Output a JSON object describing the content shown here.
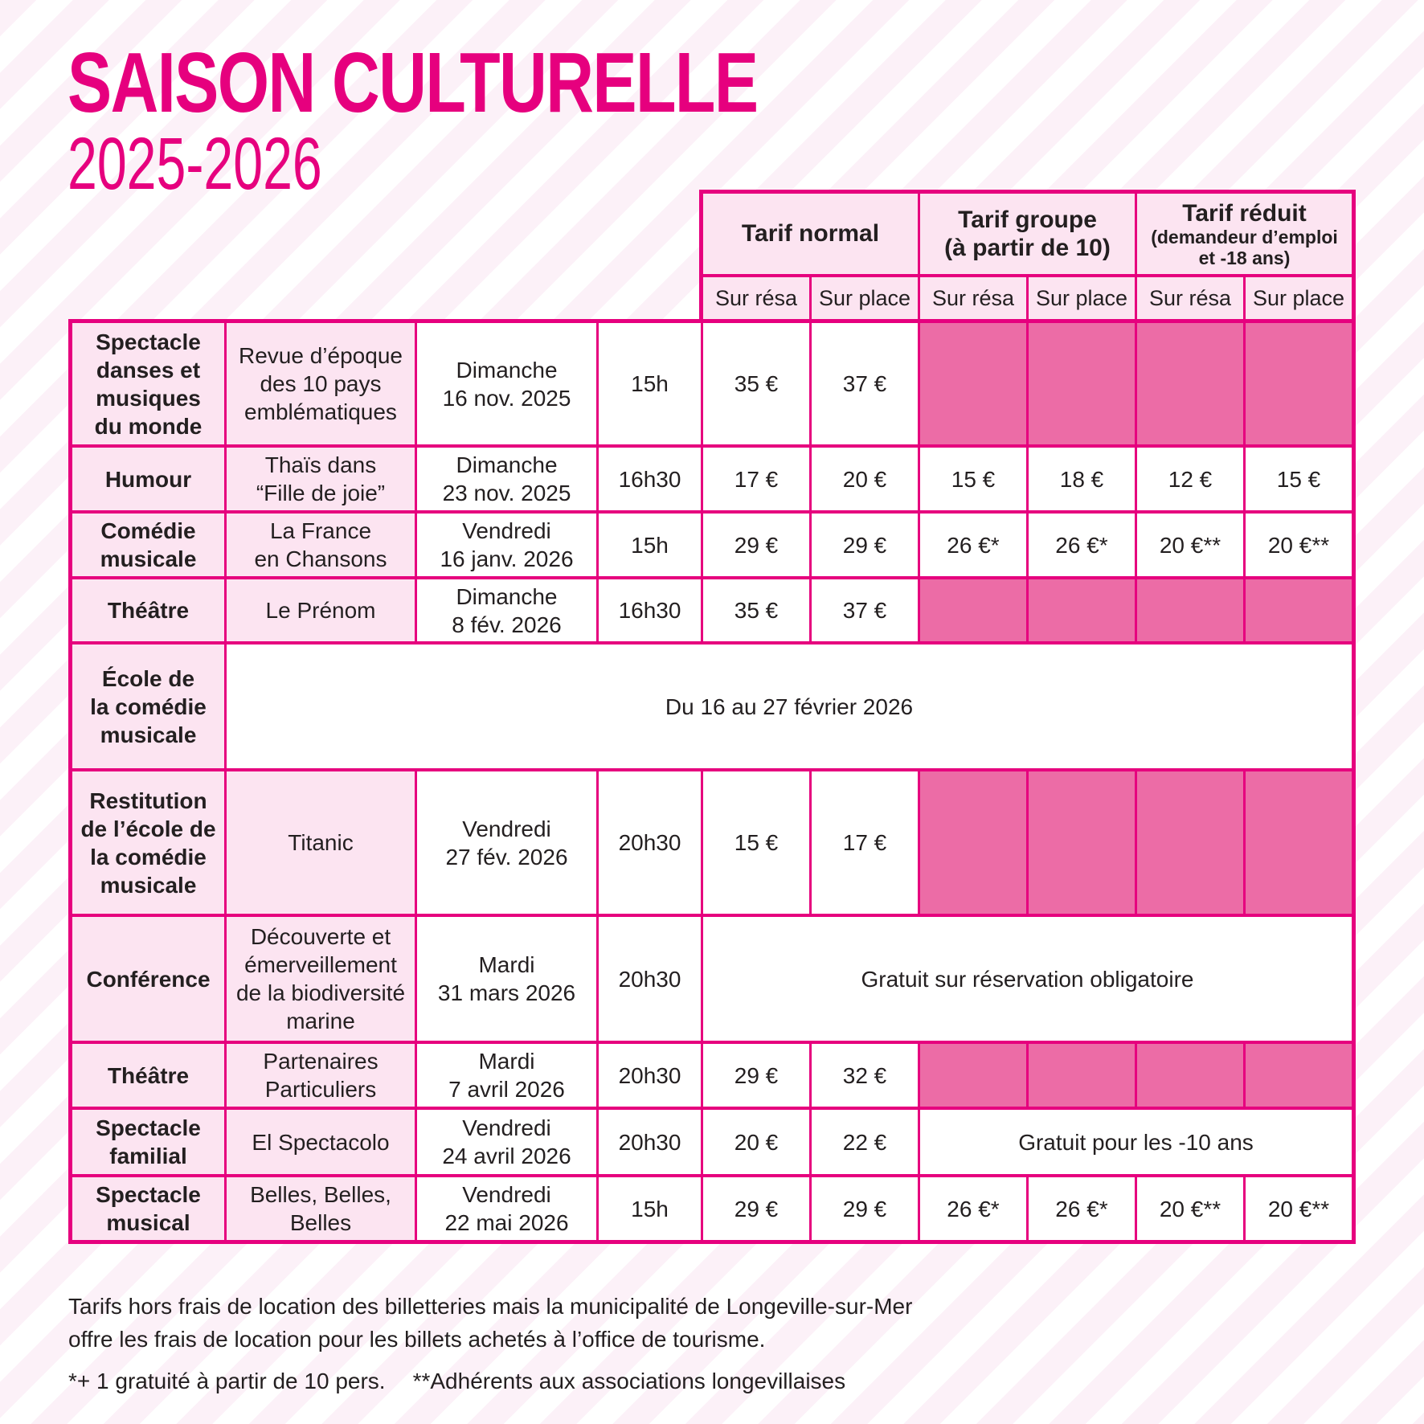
{
  "page": {
    "title": "SAISON CULTURELLE",
    "subtitle": "2025-2026"
  },
  "colors": {
    "accent": "#e6007e",
    "light_pink": "#fce4f1",
    "blocked_pink": "#ec6ca6",
    "stripe_pink": "#fcf1f8",
    "text": "#231f20"
  },
  "pricing_header": {
    "groups": [
      {
        "label": "Tarif normal",
        "sublabel": ""
      },
      {
        "label": "Tarif groupe",
        "sublabel": "(à partir de 10)"
      },
      {
        "label": "Tarif réduit",
        "sublabel": "(demandeur d’emploi\net -18 ans)"
      }
    ],
    "subcolumns": [
      "Sur résa",
      "Sur place",
      "Sur résa",
      "Sur place",
      "Sur résa",
      "Sur place"
    ]
  },
  "rows": [
    {
      "category": "Spectacle\ndanses et\nmusiques\ndu monde",
      "show": "Revue d’époque\ndes 10 pays\nemblématiques",
      "date": "Dimanche\n16 nov. 2025",
      "time": "15h",
      "prices": [
        "35 €",
        "37 €"
      ]
    },
    {
      "category": "Humour",
      "show": "Thaïs dans\n“Fille de joie”",
      "date": "Dimanche\n23 nov. 2025",
      "time": "16h30",
      "prices": [
        "17 €",
        "20 €",
        "15 €",
        "18 €",
        "12 €",
        "15 €"
      ]
    },
    {
      "category": "Comédie\nmusicale",
      "show": "La France\nen Chansons",
      "date": "Vendredi\n16 janv. 2026",
      "time": "15h",
      "prices": [
        "29 €",
        "29 €",
        "26 €*",
        "26 €*",
        "20 €**",
        "20 €**"
      ]
    },
    {
      "category": "Théâtre",
      "show": "Le Prénom",
      "date": "Dimanche\n8 fév. 2026",
      "time": "16h30",
      "prices": [
        "35 €",
        "37 €"
      ]
    },
    {
      "category": "École de\nla comédie\nmusicale",
      "note": "Du 16 au 27 février 2026"
    },
    {
      "category": "Restitution\nde l’école de\nla comédie\nmusicale",
      "show": "Titanic",
      "date": "Vendredi\n27 fév. 2026",
      "time": "20h30",
      "prices": [
        "15 €",
        "17 €"
      ]
    },
    {
      "category": "Conférence",
      "show": "Découverte et\némerveillement\nde la biodiversité\nmarine",
      "date": "Mardi\n31 mars 2026",
      "time": "20h30",
      "note": "Gratuit sur réservation obligatoire"
    },
    {
      "category": "Théâtre",
      "show": "Partenaires\nParticuliers",
      "date": "Mardi\n7 avril 2026",
      "time": "20h30",
      "prices": [
        "29 €",
        "32 €"
      ]
    },
    {
      "category": "Spectacle\nfamilial",
      "show": "El Spectacolo",
      "date": "Vendredi\n24 avril 2026",
      "time": "20h30",
      "prices": [
        "20 €",
        "22 €"
      ],
      "note": "Gratuit pour les -10 ans"
    },
    {
      "category": "Spectacle\nmusical",
      "show": "Belles, Belles,\nBelles",
      "date": "Vendredi\n22 mai 2026",
      "time": "15h",
      "prices": [
        "29 €",
        "29 €",
        "26 €*",
        "26 €*",
        "20 €**",
        "20 €**"
      ]
    }
  ],
  "footer": {
    "tariff_note": "Tarifs hors frais de location des billetteries mais la municipalité de Longeville-sur-Mer\noffre les frais de location pour les billets achetés à l’office de tourisme.",
    "note_group": "*+ 1 gratuité à partir de 10 pers.",
    "note_members": "**Adhérents aux associations longevillaises"
  }
}
